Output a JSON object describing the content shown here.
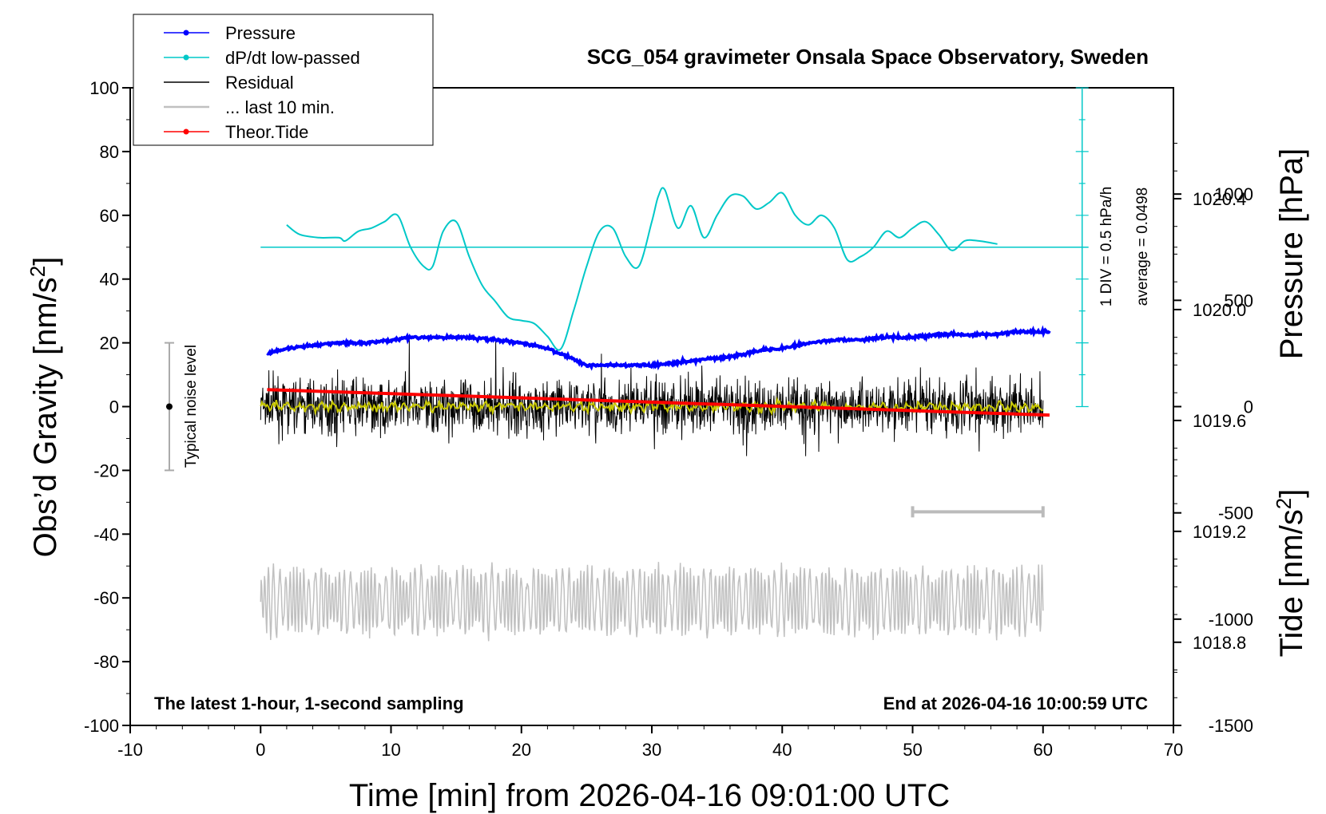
{
  "title": "SCG_054 gravimeter Onsala Space Observatory, Sweden",
  "xlabel": "Time [min] from 2026-04-16 09:01:00 UTC",
  "ylabel_left_main": "Obs’d Gravity [nm/s",
  "ylabel_left_sup": "2",
  "ylabel_left_close": "]",
  "ylabel_pressure": "Pressure [hPa]",
  "ylabel_tide_main": "Tide [nm/s",
  "ylabel_tide_sup": "2",
  "ylabel_tide_close": "]",
  "note_left": "The latest 1-hour, 1-second sampling",
  "note_right": "End at 2026-04-16 10:00:59 UTC",
  "noise_label": "Typical noise level",
  "dpdt_scale": "1 DIV = 0.5 hPa/h",
  "dpdt_average": "average = 0.0498",
  "legend": [
    {
      "label": "Pressure",
      "color": "#0000ff",
      "marker": true
    },
    {
      "label": "dP/dt low-passed",
      "color": "#00c8c8",
      "marker": true
    },
    {
      "label": "Residual",
      "color": "#000000",
      "marker": false
    },
    {
      "label": "... last 10 min.",
      "color": "#c0c0c0",
      "marker": false
    },
    {
      "label": "Theor.Tide",
      "color": "#ff0000",
      "marker": true
    }
  ],
  "chart_data": {
    "type": "line",
    "xlim": [
      -10,
      70
    ],
    "xticks": [
      "-10",
      "0",
      "10",
      "20",
      "30",
      "40",
      "50",
      "60",
      "70"
    ],
    "ylim_left": [
      -100,
      100
    ],
    "yticks_left": [
      "100",
      "80",
      "60",
      "40",
      "20",
      "0",
      "-20",
      "-40",
      "-60",
      "-80",
      "-100"
    ],
    "ylim_pressure": [
      1018.5,
      1020.8
    ],
    "yticks_pressure": [
      "1020.4",
      "1020.0",
      "1019.6",
      "1019.2",
      "1018.8"
    ],
    "ylim_tide": [
      -1500,
      1500
    ],
    "yticks_tide": [
      "1000",
      "500",
      "0",
      "-500",
      "-1000",
      "-1500"
    ],
    "noise_level": {
      "x": -7,
      "center": 0,
      "low": -20,
      "high": 20
    },
    "last10_bar": {
      "x_start": 50,
      "x_end": 60,
      "y_gravity": -33
    },
    "dpdt_baseline_gravity": 50,
    "pressure": {
      "name": "Pressure",
      "color": "#0000ff",
      "x": [
        0.5,
        2,
        4,
        6,
        8,
        10,
        12,
        14,
        16,
        18,
        20,
        22,
        24,
        25,
        26,
        28,
        30,
        32,
        34,
        36,
        38,
        40,
        42,
        44,
        46,
        48,
        50,
        52,
        54,
        56,
        58,
        60.5
      ],
      "y": [
        1019.84,
        1019.86,
        1019.87,
        1019.88,
        1019.88,
        1019.89,
        1019.9,
        1019.9,
        1019.9,
        1019.89,
        1019.88,
        1019.86,
        1019.82,
        1019.8,
        1019.8,
        1019.8,
        1019.8,
        1019.81,
        1019.82,
        1019.83,
        1019.85,
        1019.86,
        1019.88,
        1019.89,
        1019.89,
        1019.9,
        1019.9,
        1019.91,
        1019.91,
        1019.91,
        1019.92,
        1019.92
      ]
    },
    "dpdt": {
      "name": "dP/dt low-passed",
      "color": "#00c8c8",
      "x": [
        2,
        3,
        4.5,
        6,
        6.5,
        7.5,
        8.5,
        9.5,
        10.5,
        11.5,
        12.5,
        13.2,
        14,
        15,
        16,
        17,
        18,
        19,
        20,
        21,
        22,
        23,
        24,
        25,
        26,
        27,
        28,
        29,
        30,
        30.5,
        31,
        32,
        33,
        34,
        35,
        36,
        37,
        38,
        39,
        40,
        41,
        42,
        43,
        44,
        45,
        46,
        47,
        48,
        49,
        50,
        51,
        52,
        53,
        54,
        55,
        56.5
      ],
      "y": [
        57,
        54,
        53,
        53,
        52,
        55,
        56,
        58,
        60,
        50,
        44,
        44,
        55,
        58,
        47,
        38,
        33,
        28,
        27,
        26,
        22,
        18,
        30,
        44,
        55,
        56,
        47,
        44,
        58,
        66,
        68,
        56,
        63,
        53,
        60,
        66,
        66,
        62,
        64,
        67,
        60,
        57,
        60,
        56,
        46,
        47,
        50,
        55,
        53,
        56,
        58,
        54,
        49,
        52,
        52,
        51
      ]
    },
    "residual": {
      "name": "Residual",
      "color": "#000000",
      "x_range": [
        0,
        60
      ],
      "y_range_approx": [
        -20,
        23
      ]
    },
    "residual_smoothed": {
      "color": "#c8c800",
      "y_approx": 0
    },
    "last10": {
      "name": "... last 10 min.",
      "color": "#c0c0c0",
      "x_range": [
        0,
        60
      ],
      "y_range_approx": [
        -78,
        -42
      ]
    },
    "tide": {
      "name": "Theor.Tide",
      "color": "#ff0000",
      "x": [
        0.5,
        60.5
      ],
      "y": [
        80,
        -40
      ]
    }
  }
}
